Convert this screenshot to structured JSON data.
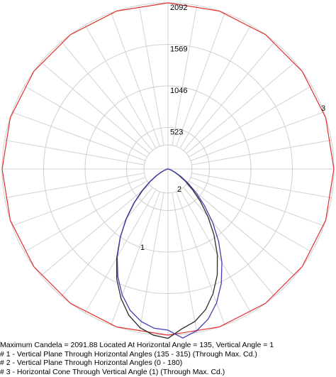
{
  "chart_data": {
    "type": "polar",
    "max_value": 2092,
    "radial_ticks": [
      "523",
      "1046",
      "1569",
      "2092"
    ],
    "radial_tick_values": [
      523,
      1046,
      1569,
      2092
    ],
    "angle_step_deg": 10,
    "series": [
      {
        "label": "1",
        "color": "#2b2b2b",
        "angles": [
          0,
          5,
          10,
          15,
          20,
          25,
          30,
          35,
          40,
          45,
          50,
          55,
          60,
          65,
          70,
          75,
          80,
          85,
          90
        ],
        "values": [
          2090,
          2060,
          1990,
          1870,
          1700,
          1500,
          1270,
          1030,
          800,
          590,
          410,
          270,
          160,
          90,
          45,
          20,
          8,
          3,
          0
        ]
      },
      {
        "label": "2",
        "color": "#3f3fb0",
        "angles": [
          0,
          5,
          10,
          15,
          20,
          25,
          30,
          35,
          40,
          45,
          50,
          55,
          60,
          65,
          70,
          75,
          80,
          85,
          90
        ],
        "values": [
          2092,
          2075,
          2010,
          1900,
          1740,
          1545,
          1320,
          1080,
          850,
          630,
          445,
          295,
          180,
          100,
          50,
          22,
          9,
          3,
          0
        ]
      },
      {
        "label": "3",
        "color": "#e23030",
        "value": 2092,
        "polygon_sides": 20
      }
    ]
  },
  "legend": {
    "line0": "Maximum Candela = 2091.88   Located At Horizontal Angle = 135, Vertical Angle = 1",
    "line1": "# 1 - Vertical Plane Through Horizontal Angles (135 - 315) (Through Max. Cd.)",
    "line2": "# 2 - Vertical Plane Through Horizontal Angles (0 - 180)",
    "line3": "# 3 - Horizontal Cone Through Vertical Angle (1) (Through Max. Cd.)"
  }
}
